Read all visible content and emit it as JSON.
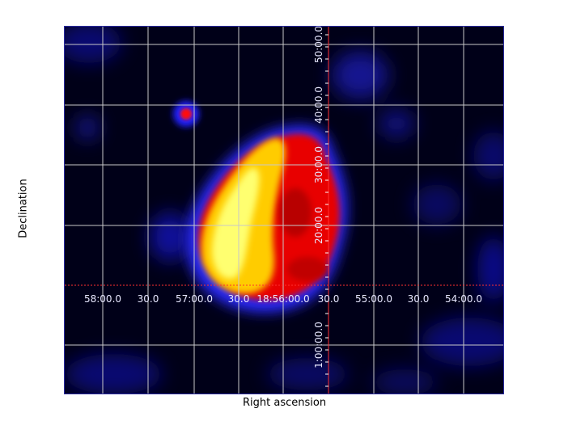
{
  "axes": {
    "xlabel": "Right ascension",
    "ylabel": "Declination"
  },
  "ra_labels": [
    "58:00.0",
    "30.0",
    "57:00.0",
    "30.0",
    "18:56:00.0",
    "30.0",
    "55:00.0",
    "30.0",
    "54:00.0"
  ],
  "dec_labels": [
    "50:00.0",
    "40:00.0",
    "30:00.0",
    "20:00.0",
    "1:00:00.0"
  ],
  "colors": {
    "background": "#000018",
    "grid": "#c8c8c8",
    "axis_line": "#ff3030",
    "colormap": [
      "#000000",
      "#1010ff",
      "#ff0000",
      "#ffff00",
      "#ffffe0"
    ]
  }
}
